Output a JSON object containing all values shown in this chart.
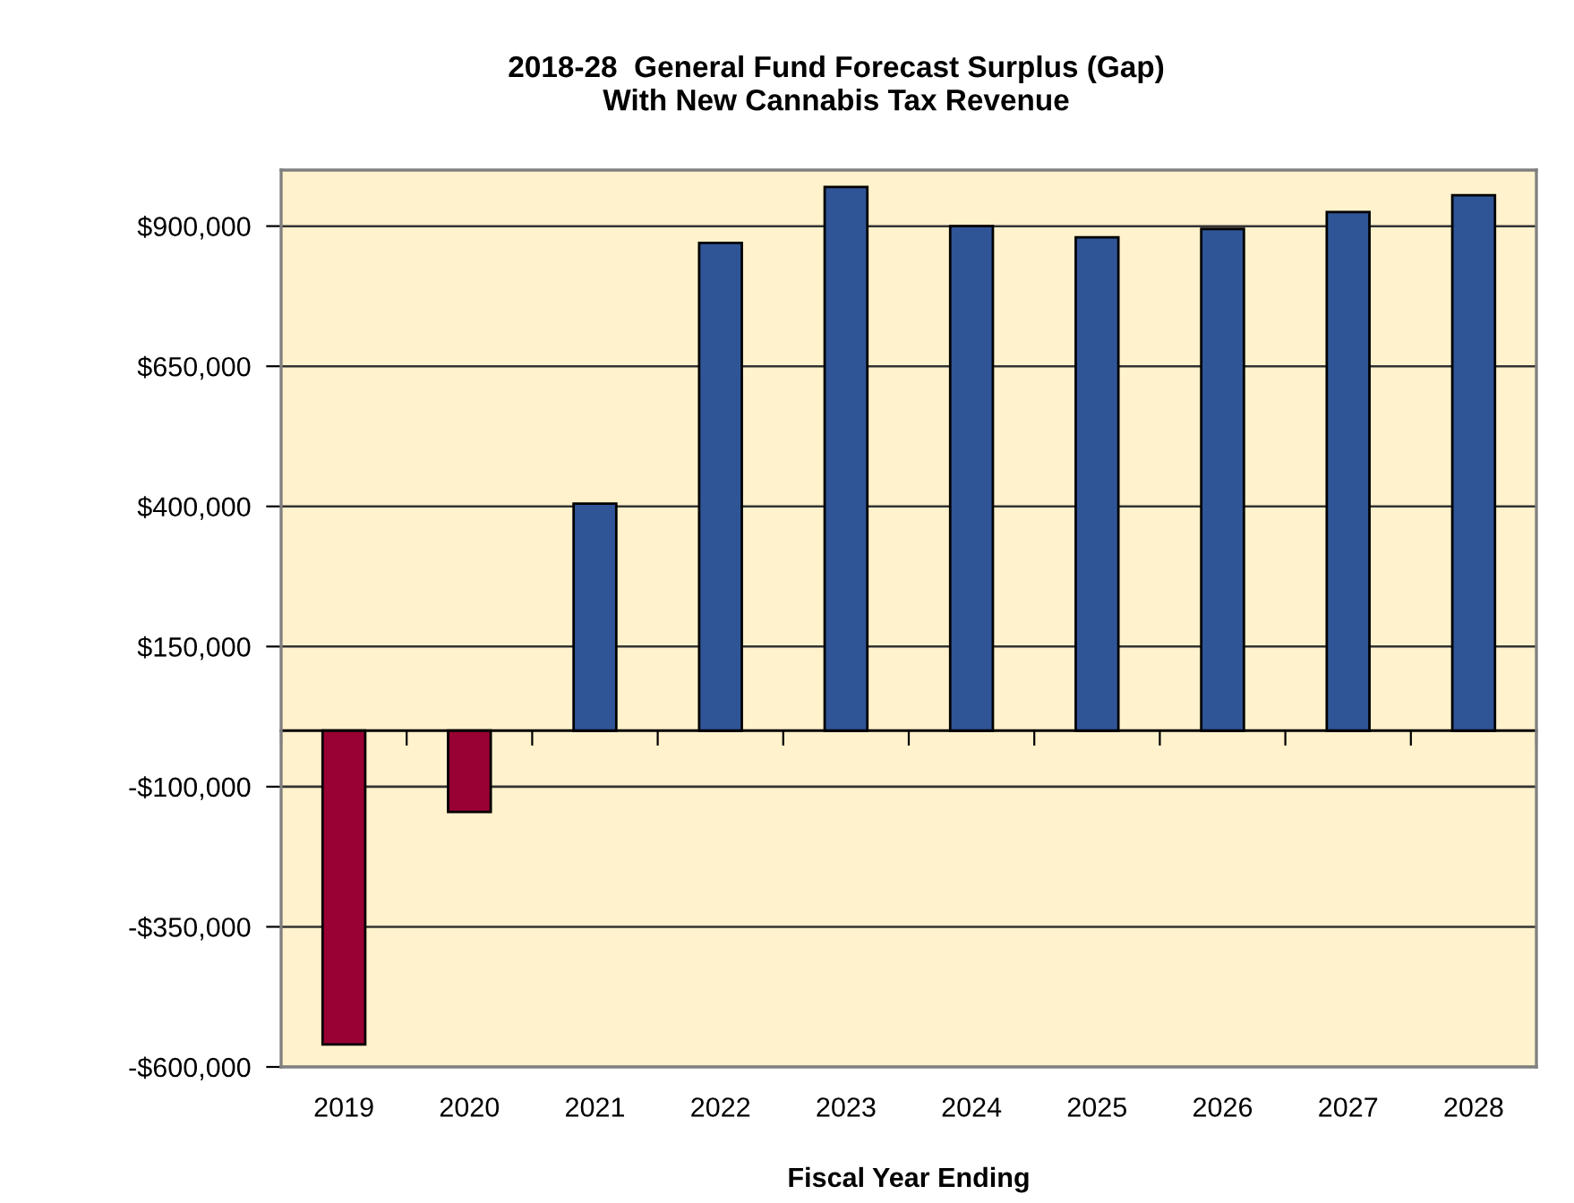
{
  "chart_data": {
    "type": "bar",
    "title": "2018-28  General Fund Forecast Surplus (Gap)\nWith New Cannabis Tax Revenue",
    "xlabel": "Fiscal Year Ending",
    "categories": [
      "2019",
      "2020",
      "2021",
      "2022",
      "2023",
      "2024",
      "2025",
      "2026",
      "2027",
      "2028"
    ],
    "values": [
      -560000,
      -145000,
      405000,
      870000,
      970000,
      900000,
      880000,
      895000,
      925000,
      955000
    ],
    "colors": [
      "#990033",
      "#990033",
      "#2f5597",
      "#2f5597",
      "#2f5597",
      "#2f5597",
      "#2f5597",
      "#2f5597",
      "#2f5597",
      "#2f5597"
    ],
    "ylim": [
      -600000,
      1000000
    ],
    "yticks": [
      {
        "value": -600000,
        "label": "-$600,000"
      },
      {
        "value": -350000,
        "label": "-$350,000"
      },
      {
        "value": -100000,
        "label": "-$100,000"
      },
      {
        "value": 150000,
        "label": "$150,000"
      },
      {
        "value": 400000,
        "label": "$400,000"
      },
      {
        "value": 650000,
        "label": "$650,000"
      },
      {
        "value": 900000,
        "label": "$900,000"
      }
    ],
    "grid": "y"
  }
}
